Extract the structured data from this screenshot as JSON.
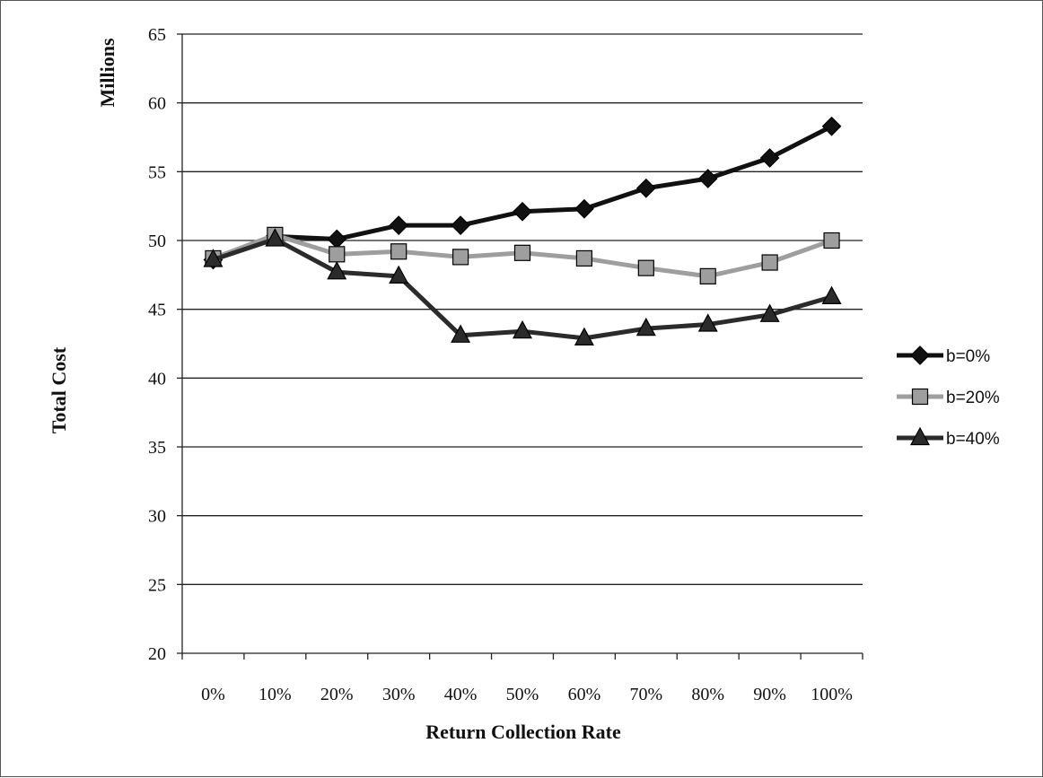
{
  "chart_data": {
    "type": "line",
    "title": "",
    "xlabel": "Return Collection Rate",
    "ylabel": "Total Cost",
    "y_unit": "Millions",
    "categories": [
      "0%",
      "10%",
      "20%",
      "30%",
      "40%",
      "50%",
      "60%",
      "70%",
      "80%",
      "90%",
      "100%"
    ],
    "ylim": [
      20,
      65
    ],
    "yticks": [
      20,
      25,
      30,
      35,
      40,
      45,
      50,
      55,
      60,
      65
    ],
    "grid": true,
    "legend_position": "right",
    "series": [
      {
        "name": "b=0%",
        "marker": "diamond",
        "color": "#111111",
        "values": [
          48.6,
          50.3,
          50.1,
          51.1,
          51.1,
          52.1,
          52.3,
          53.8,
          54.5,
          56.0,
          58.3
        ]
      },
      {
        "name": "b=20%",
        "marker": "square",
        "color": "#9e9e9e",
        "values": [
          48.7,
          50.4,
          49.0,
          49.2,
          48.8,
          49.1,
          48.7,
          48.0,
          47.4,
          48.4,
          50.0
        ]
      },
      {
        "name": "b=40%",
        "marker": "triangle",
        "color": "#2b2b2b",
        "values": [
          48.6,
          50.1,
          47.7,
          47.4,
          43.1,
          43.4,
          42.9,
          43.6,
          43.9,
          44.6,
          45.9
        ]
      }
    ]
  }
}
